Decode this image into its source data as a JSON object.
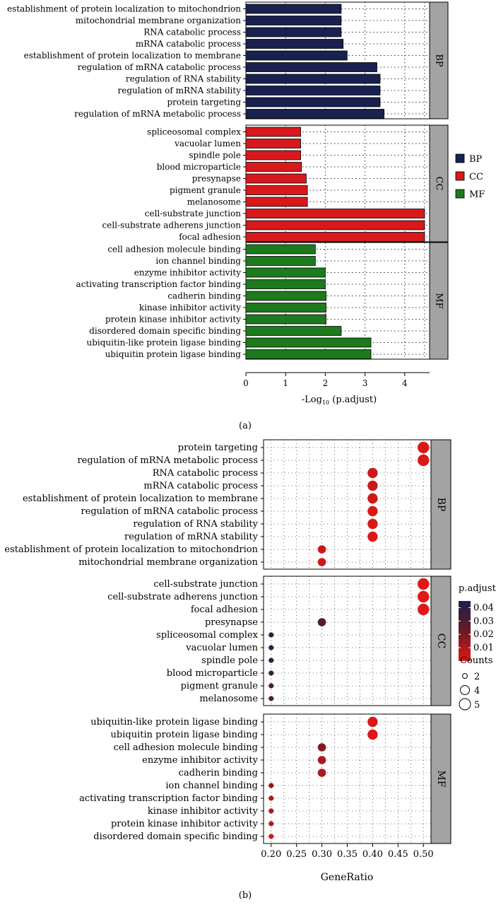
{
  "colors": {
    "BP": "#18214f",
    "CC": "#d7191c",
    "MF": "#1d7a1d",
    "strip": "#a3a3a3",
    "grad_top": "#1a2050",
    "grad_mid": "#6a1a22",
    "grad_bot": "#e01818"
  },
  "labels": {
    "panel_a": "(a)",
    "panel_b": "(b)"
  },
  "chart_data": [
    {
      "type": "bar",
      "panel": "(a)",
      "orientation": "horizontal",
      "xlabel_prefix": "-Log",
      "xlabel_sub": "10",
      "xlabel_suffix": " (p.adjust)",
      "xlim": [
        0,
        4.6
      ],
      "xticks": [
        0,
        1,
        2,
        3,
        4
      ],
      "legend": {
        "placement": "right",
        "items": [
          {
            "key": "BP",
            "label": "BP"
          },
          {
            "key": "CC",
            "label": "CC"
          },
          {
            "key": "MF",
            "label": "MF"
          }
        ]
      },
      "facets": [
        {
          "name": "BP",
          "categories": [
            [
              "establishment of protein localization to mitochondrion",
              2.4
            ],
            [
              "mitochondrial membrane organization",
              2.4
            ],
            [
              "RNA catabolic process",
              2.4
            ],
            [
              "mRNA catabolic process",
              2.45
            ],
            [
              "establishment of protein localization to membrane",
              2.55
            ],
            [
              "regulation of mRNA catabolic process",
              3.3
            ],
            [
              "regulation of RNA stability",
              3.38
            ],
            [
              "regulation of mRNA stability",
              3.38
            ],
            [
              "protein targeting",
              3.38
            ],
            [
              "regulation of mRNA metabolic process",
              3.48
            ]
          ]
        },
        {
          "name": "CC",
          "categories": [
            [
              "spliceosomal complex",
              1.38
            ],
            [
              "vacuolar lumen",
              1.38
            ],
            [
              "spindle pole",
              1.38
            ],
            [
              "blood microparticle",
              1.4
            ],
            [
              "presynapse",
              1.52
            ],
            [
              "pigment granule",
              1.55
            ],
            [
              "melanosome",
              1.55
            ],
            [
              "cell-substrate junction",
              4.5
            ],
            [
              "cell-substrate adherens junction",
              4.5
            ],
            [
              "focal adhesion",
              4.5
            ]
          ]
        },
        {
          "name": "MF",
          "categories": [
            [
              "cell adhesion molecule binding",
              1.75
            ],
            [
              "ion channel binding",
              1.75
            ],
            [
              "enzyme inhibitor activity",
              2.0
            ],
            [
              "activating transcription factor binding",
              2.0
            ],
            [
              "cadherin binding",
              2.02
            ],
            [
              "kinase inhibitor activity",
              2.02
            ],
            [
              "protein kinase inhibitor activity",
              2.02
            ],
            [
              "disordered domain specific binding",
              2.4
            ],
            [
              "ubiquitin-like protein ligase binding",
              3.15
            ],
            [
              "ubiquitin protein ligase binding",
              3.15
            ]
          ]
        }
      ]
    },
    {
      "type": "scatter",
      "panel": "(b)",
      "xlabel": "GeneRatio",
      "xlim": [
        0.185,
        0.515
      ],
      "xticks": [
        "0.20",
        "0.25",
        "0.30",
        "0.35",
        "0.40",
        "0.45",
        "0.50"
      ],
      "color_legend": {
        "title": "p.adjust",
        "ticks": [
          "0.04",
          "0.03",
          "0.02",
          "0.01"
        ],
        "range": [
          0.0,
          0.045
        ]
      },
      "size_legend": {
        "title": "Counts",
        "items": [
          "2",
          "4",
          "5"
        ]
      },
      "facets": [
        {
          "name": "BP",
          "points": [
            [
              "protein targeting",
              0.5,
              5,
              0.001
            ],
            [
              "regulation of mRNA metabolic process",
              0.5,
              5,
              0.001
            ],
            [
              "RNA catabolic process",
              0.4,
              4,
              0.004
            ],
            [
              "mRNA catabolic process",
              0.4,
              4,
              0.004
            ],
            [
              "establishment of protein localization to membrane",
              0.4,
              4,
              0.003
            ],
            [
              "regulation of mRNA catabolic process",
              0.4,
              4,
              0.001
            ],
            [
              "regulation of RNA stability",
              0.4,
              4,
              0.001
            ],
            [
              "regulation of mRNA stability",
              0.4,
              4,
              0.001
            ],
            [
              "establishment of protein localization to mitochondrion",
              0.3,
              3,
              0.004
            ],
            [
              "mitochondrial membrane organization",
              0.3,
              3,
              0.004
            ]
          ]
        },
        {
          "name": "CC",
          "points": [
            [
              "cell-substrate junction",
              0.5,
              5,
              0.0001
            ],
            [
              "cell-substrate adherens junction",
              0.5,
              5,
              0.0001
            ],
            [
              "focal adhesion",
              0.5,
              5,
              0.0001
            ],
            [
              "presynapse",
              0.3,
              3,
              0.03
            ],
            [
              "spliceosomal complex",
              0.2,
              2,
              0.042
            ],
            [
              "vacuolar lumen",
              0.2,
              2,
              0.042
            ],
            [
              "spindle pole",
              0.2,
              2,
              0.042
            ],
            [
              "blood microparticle",
              0.2,
              2,
              0.04
            ],
            [
              "pigment granule",
              0.2,
              2,
              0.03
            ],
            [
              "melanosome",
              0.2,
              2,
              0.03
            ]
          ]
        },
        {
          "name": "MF",
          "points": [
            [
              "ubiquitin-like protein ligase binding",
              0.4,
              4,
              0.0007
            ],
            [
              "ubiquitin protein ligase binding",
              0.4,
              4,
              0.0007
            ],
            [
              "cell adhesion molecule binding",
              0.3,
              3,
              0.017
            ],
            [
              "enzyme inhibitor activity",
              0.3,
              3,
              0.01
            ],
            [
              "cadherin binding",
              0.3,
              3,
              0.01
            ],
            [
              "ion channel binding",
              0.2,
              2,
              0.017
            ],
            [
              "activating transcription factor binding",
              0.2,
              2,
              0.01
            ],
            [
              "kinase inhibitor activity",
              0.2,
              2,
              0.01
            ],
            [
              "protein kinase inhibitor activity",
              0.2,
              2,
              0.01
            ],
            [
              "disordered domain specific binding",
              0.2,
              2,
              0.004
            ]
          ]
        }
      ]
    }
  ]
}
